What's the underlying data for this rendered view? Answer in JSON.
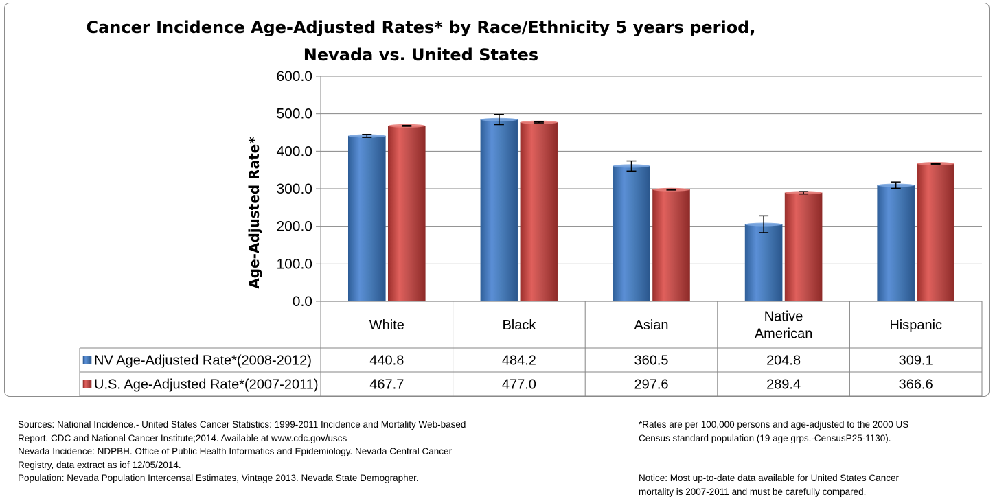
{
  "chart_data": {
    "type": "bar",
    "title_lines": [
      "Cancer Incidence Age-Adjusted Rates* by Race/Ethnicity 5 years period,",
      "Nevada vs. United States"
    ],
    "ylabel": "Age-Adjusted Rate*",
    "ylim": [
      0,
      600
    ],
    "yticks": [
      "0.0",
      "100.0",
      "200.0",
      "300.0",
      "400.0",
      "500.0",
      "600.0"
    ],
    "grid": true,
    "categories": [
      "White",
      "Black",
      "Asian",
      "Native American",
      "Hispanic"
    ],
    "category_lines": [
      [
        "White"
      ],
      [
        "Black"
      ],
      [
        "Asian"
      ],
      [
        "Native",
        "American"
      ],
      [
        "Hispanic"
      ]
    ],
    "series": [
      {
        "name": "NV Age-Adjusted Rate*(2008-2012)",
        "color": "#4a7ebb",
        "values": [
          440.8,
          484.2,
          360.5,
          204.8,
          309.1
        ],
        "value_labels": [
          "440.8",
          "484.2",
          "360.5",
          "204.8",
          "309.1"
        ],
        "error_low": [
          437,
          471,
          347,
          183,
          301
        ],
        "error_high": [
          445,
          498,
          374,
          228,
          318
        ]
      },
      {
        "name": "U.S. Age-Adjusted Rate*(2007-2011)",
        "color": "#c0504d",
        "values": [
          467.7,
          477.0,
          297.6,
          289.4,
          366.6
        ],
        "value_labels": [
          "467.7",
          "477.0",
          "297.6",
          "289.4",
          "366.6"
        ],
        "error_low": [
          466.5,
          475.5,
          296.5,
          286,
          365.5
        ],
        "error_high": [
          469,
          478.5,
          298.8,
          292.5,
          367.8
        ]
      }
    ]
  },
  "notes": {
    "left": [
      "Sources: National Incidence.- United States Cancer Statistics: 1999-2011 Incidence and Mortality Web-based",
      "Report. CDC and National Cancer Institute;2014. Available at www.cdc.gov/uscs",
      "Nevada  Incidence: NDPBH. Office of  Public Health Informatics and Epidemiology. Nevada Central Cancer",
      "Registry, data extract as iof 12/05/2014.",
      "Population: Nevada Population Intercensal Estimates, Vintage 2013. Nevada State Demographer."
    ],
    "right_top": [
      "*Rates are per 100,000 persons and age-adjusted to the 2000 US",
      "Census standard population (19 age grps.-CensusP25-1130)."
    ],
    "right_bottom": [
      "Notice: Most up-to-date data available for United States Cancer",
      "mortality is 2007-2011 and must be carefully compared."
    ]
  }
}
